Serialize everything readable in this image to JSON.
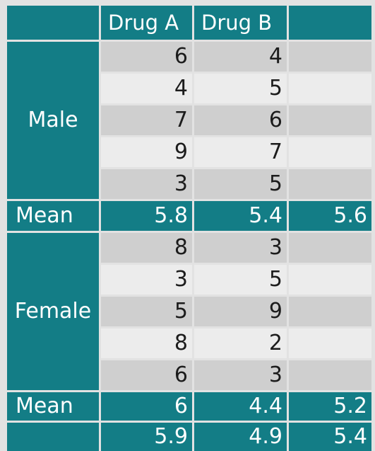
{
  "header": {
    "corner": "",
    "drug_a": "Drug A",
    "drug_b": "Drug B",
    "row_mean": ""
  },
  "male": {
    "label": "Male",
    "rows": [
      {
        "a": "6",
        "b": "4"
      },
      {
        "a": "4",
        "b": "5"
      },
      {
        "a": "7",
        "b": "6"
      },
      {
        "a": "9",
        "b": "7"
      },
      {
        "a": "3",
        "b": "5"
      }
    ],
    "mean": {
      "label": "Mean",
      "a": "5.8",
      "b": "5.4",
      "overall": "5.6"
    }
  },
  "female": {
    "label": "Female",
    "rows": [
      {
        "a": "8",
        "b": "3"
      },
      {
        "a": "3",
        "b": "5"
      },
      {
        "a": "5",
        "b": "9"
      },
      {
        "a": "8",
        "b": "2"
      },
      {
        "a": "6",
        "b": "3"
      }
    ],
    "mean": {
      "label": "Mean",
      "a": "6",
      "b": "4.4",
      "overall": "5.2"
    }
  },
  "totals": {
    "label": "",
    "a": "5.9",
    "b": "4.9",
    "overall": "5.4"
  },
  "colors": {
    "teal": "#137d86",
    "gray_dark": "#cfcfcf",
    "gray_light": "#ececec",
    "background": "#e2e2e2"
  }
}
